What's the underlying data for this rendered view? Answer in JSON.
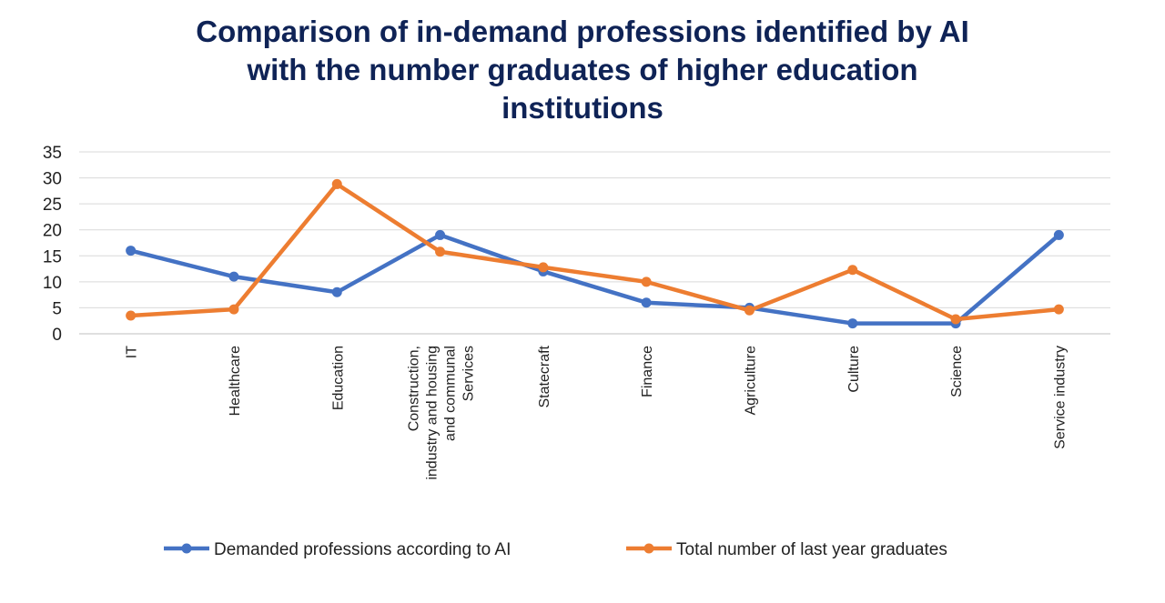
{
  "chart_data": {
    "type": "line",
    "title_lines": [
      "Comparison of in-demand professions identified by AI",
      "with the number graduates of higher education",
      "institutions"
    ],
    "categories": [
      [
        "IT"
      ],
      [
        "Healthcare"
      ],
      [
        "Education"
      ],
      [
        "Construction,",
        "industry and housing",
        "and communal",
        "Services"
      ],
      [
        "Statecraft"
      ],
      [
        "Finance"
      ],
      [
        "Agriculture"
      ],
      [
        "Culture"
      ],
      [
        "Science"
      ],
      [
        "Service industry"
      ]
    ],
    "series": [
      {
        "name": "Demanded professions according to AI",
        "color": "#4472c4",
        "values": [
          16,
          11,
          8,
          19,
          12,
          6,
          5,
          2,
          2,
          19
        ]
      },
      {
        "name": "Total number of last year graduates",
        "color": "#ed7d31",
        "values": [
          3.5,
          4.7,
          28.8,
          15.8,
          12.8,
          10,
          4.5,
          12.3,
          2.8,
          4.7
        ]
      }
    ],
    "ylim": [
      0,
      35
    ],
    "yticks": [
      0,
      5,
      10,
      15,
      20,
      25,
      30,
      35
    ],
    "grid": true,
    "legend_position": "bottom"
  }
}
